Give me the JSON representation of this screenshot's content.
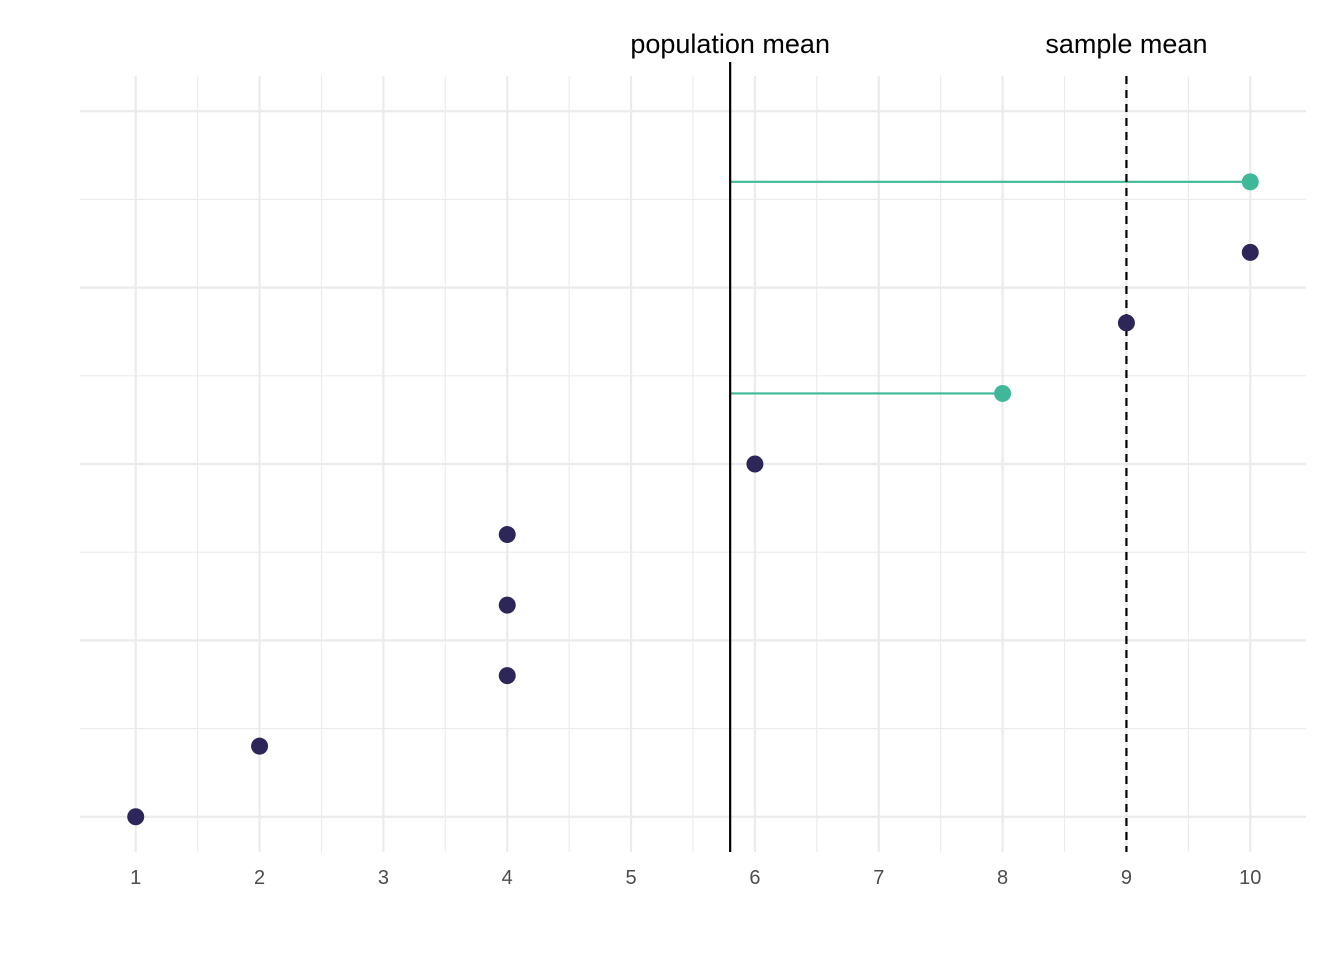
{
  "chart_data": {
    "type": "scatter",
    "title": "",
    "xlabel": "",
    "ylabel": "",
    "xlim": [
      0.55,
      10.45
    ],
    "ylim": [
      0.5,
      11.5
    ],
    "x_ticks": [
      "1",
      "2",
      "3",
      "4",
      "5",
      "6",
      "7",
      "8",
      "9",
      "10"
    ],
    "grid": true,
    "points": [
      {
        "x": 1,
        "y": 1,
        "highlight": false
      },
      {
        "x": 2,
        "y": 2,
        "highlight": false
      },
      {
        "x": 4,
        "y": 3,
        "highlight": false
      },
      {
        "x": 4,
        "y": 4,
        "highlight": false
      },
      {
        "x": 4,
        "y": 5,
        "highlight": false
      },
      {
        "x": 6,
        "y": 6,
        "highlight": false
      },
      {
        "x": 8,
        "y": 7,
        "highlight": true
      },
      {
        "x": 9,
        "y": 8,
        "highlight": false
      },
      {
        "x": 10,
        "y": 9,
        "highlight": false
      },
      {
        "x": 10,
        "y": 10,
        "highlight": true
      }
    ],
    "population_mean": 5.8,
    "sample_mean": 9,
    "annotations": {
      "population_mean_label": "population mean",
      "sample_mean_label": "sample mean"
    },
    "colors": {
      "point": "#2d2658",
      "highlight": "#3fb89a",
      "grid": "#ebebeb",
      "mean_line": "#000000"
    }
  }
}
